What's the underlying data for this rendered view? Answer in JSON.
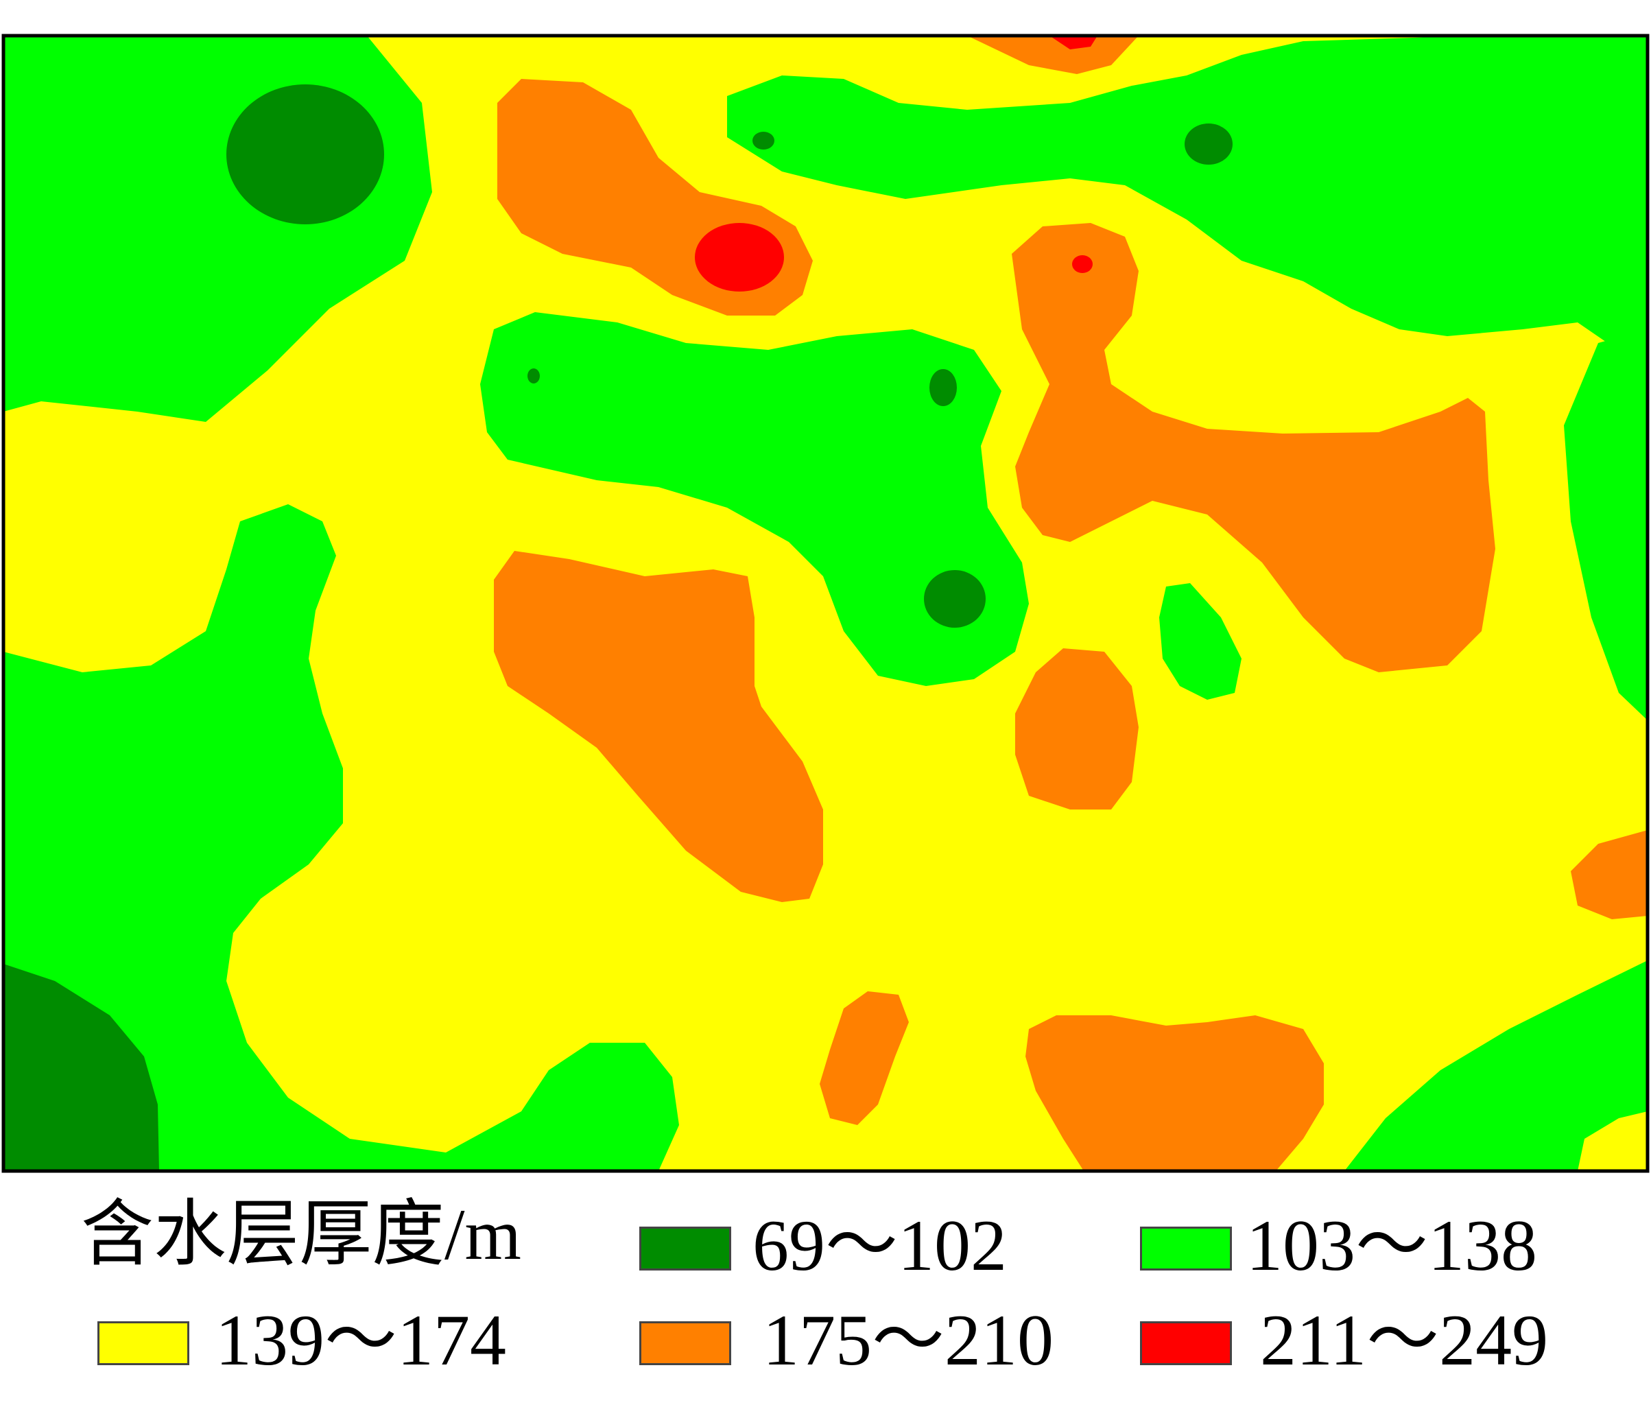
{
  "legend": {
    "title": "含水层厚度/m",
    "items": [
      {
        "label": "69～102",
        "color": "#008c00"
      },
      {
        "label": "103～138",
        "color": "#00ff00"
      },
      {
        "label": "139～174",
        "color": "#ffff00"
      },
      {
        "label": "175～210",
        "color": "#ff8000"
      },
      {
        "label": "211～249",
        "color": "#ff0000"
      }
    ]
  },
  "colors": {
    "class_69_102": "#008c00",
    "class_103_138": "#00ff00",
    "class_139_174": "#ffff00",
    "class_175_210": "#ff8000",
    "class_211_249": "#ff0000",
    "frame": "#000000"
  }
}
